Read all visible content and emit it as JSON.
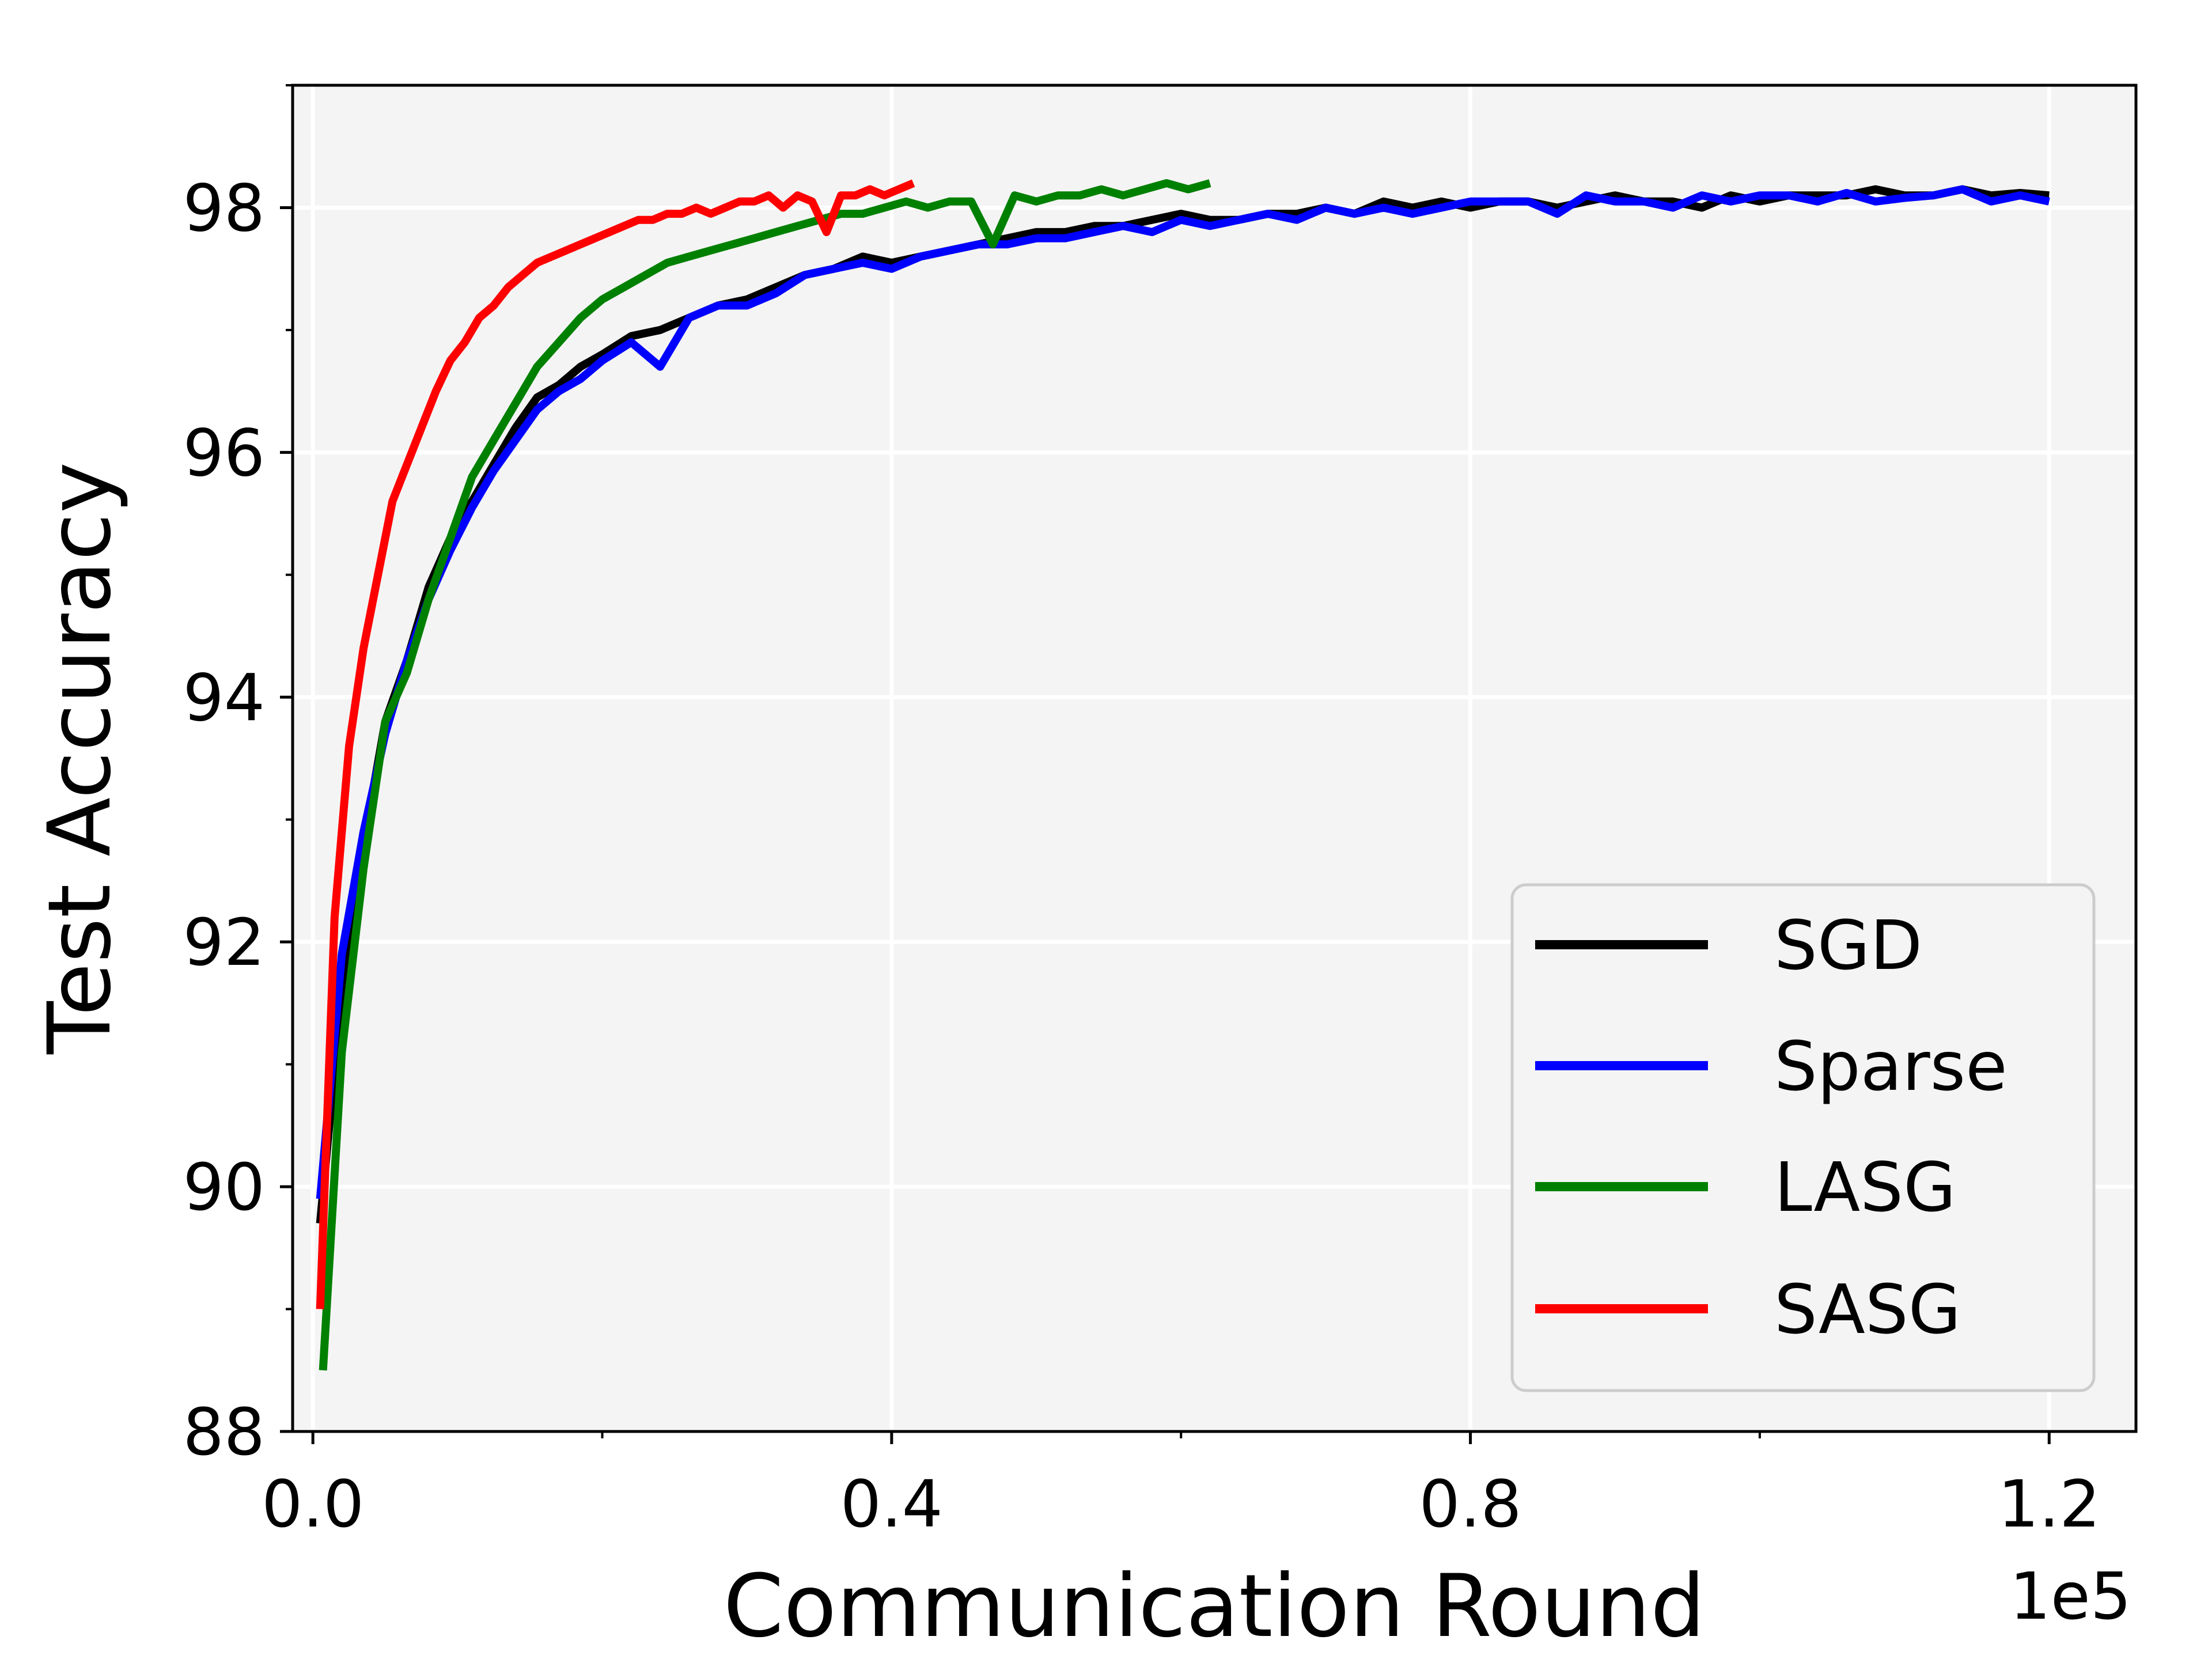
{
  "chart_data": {
    "type": "line",
    "title": "",
    "xlabel": "Communication Round",
    "ylabel": "Test Accuracy",
    "x_offset_text": "1e5",
    "xlim": [
      -0.014,
      1.26
    ],
    "ylim": [
      88,
      99
    ],
    "xticks": [
      0.0,
      0.4,
      0.8,
      1.2
    ],
    "xtick_labels": [
      "0.0",
      "0.4",
      "0.8",
      "1.2"
    ],
    "yticks": [
      88,
      90,
      92,
      94,
      96,
      98
    ],
    "ytick_labels": [
      "88",
      "90",
      "92",
      "94",
      "96",
      "98"
    ],
    "x_minor_ticks": [
      0.2,
      0.6,
      1.0
    ],
    "y_minor_ticks": [
      89,
      91,
      93,
      95,
      97,
      99
    ],
    "grid": true,
    "legend_position": "lower-right",
    "background": "#f4f4f4",
    "series": [
      {
        "name": "SGD",
        "color": "#000000",
        "x": [
          0.005,
          0.02,
          0.035,
          0.05,
          0.065,
          0.08,
          0.095,
          0.11,
          0.125,
          0.14,
          0.155,
          0.17,
          0.185,
          0.2,
          0.22,
          0.24,
          0.26,
          0.28,
          0.3,
          0.32,
          0.34,
          0.36,
          0.38,
          0.4,
          0.42,
          0.44,
          0.46,
          0.48,
          0.5,
          0.52,
          0.54,
          0.56,
          0.58,
          0.6,
          0.62,
          0.64,
          0.66,
          0.68,
          0.7,
          0.72,
          0.74,
          0.76,
          0.78,
          0.8,
          0.82,
          0.84,
          0.86,
          0.88,
          0.9,
          0.92,
          0.94,
          0.96,
          0.98,
          1.0,
          1.02,
          1.04,
          1.06,
          1.08,
          1.1,
          1.12,
          1.14,
          1.16,
          1.18,
          1.2
        ],
        "values": [
          89.7,
          91.6,
          92.8,
          93.8,
          94.3,
          94.9,
          95.3,
          95.6,
          95.9,
          96.2,
          96.45,
          96.55,
          96.7,
          96.8,
          96.95,
          97.0,
          97.1,
          97.2,
          97.25,
          97.35,
          97.45,
          97.5,
          97.6,
          97.55,
          97.6,
          97.65,
          97.7,
          97.75,
          97.8,
          97.8,
          97.85,
          97.85,
          97.9,
          97.95,
          97.9,
          97.9,
          97.95,
          97.95,
          98.0,
          97.95,
          98.05,
          98.0,
          98.05,
          98.0,
          98.05,
          98.05,
          98.0,
          98.05,
          98.1,
          98.05,
          98.05,
          98.0,
          98.1,
          98.05,
          98.1,
          98.1,
          98.1,
          98.15,
          98.1,
          98.1,
          98.15,
          98.1,
          98.12,
          98.1
        ]
      },
      {
        "name": "Sparse",
        "color": "#0000ff",
        "x": [
          0.005,
          0.02,
          0.035,
          0.05,
          0.065,
          0.08,
          0.095,
          0.11,
          0.125,
          0.14,
          0.155,
          0.17,
          0.185,
          0.2,
          0.22,
          0.24,
          0.26,
          0.28,
          0.3,
          0.32,
          0.34,
          0.36,
          0.38,
          0.4,
          0.42,
          0.44,
          0.46,
          0.48,
          0.5,
          0.52,
          0.54,
          0.56,
          0.58,
          0.6,
          0.62,
          0.64,
          0.66,
          0.68,
          0.7,
          0.72,
          0.74,
          0.76,
          0.78,
          0.8,
          0.82,
          0.84,
          0.86,
          0.88,
          0.9,
          0.92,
          0.94,
          0.96,
          0.98,
          1.0,
          1.02,
          1.04,
          1.06,
          1.08,
          1.1,
          1.12,
          1.14,
          1.16,
          1.18,
          1.2
        ],
        "values": [
          89.9,
          91.9,
          92.9,
          93.7,
          94.3,
          94.8,
          95.2,
          95.55,
          95.85,
          96.1,
          96.35,
          96.5,
          96.6,
          96.75,
          96.9,
          96.7,
          97.1,
          97.2,
          97.2,
          97.3,
          97.45,
          97.5,
          97.55,
          97.5,
          97.6,
          97.65,
          97.7,
          97.7,
          97.75,
          97.75,
          97.8,
          97.85,
          97.8,
          97.9,
          97.85,
          97.9,
          97.95,
          97.9,
          98.0,
          97.95,
          98.0,
          97.95,
          98.0,
          98.05,
          98.05,
          98.05,
          97.95,
          98.1,
          98.05,
          98.05,
          98.0,
          98.1,
          98.05,
          98.1,
          98.1,
          98.05,
          98.12,
          98.05,
          98.08,
          98.1,
          98.15,
          98.05,
          98.1,
          98.05
        ]
      },
      {
        "name": "LASG",
        "color": "#008000",
        "x": [
          0.007,
          0.02,
          0.035,
          0.05,
          0.065,
          0.08,
          0.095,
          0.11,
          0.125,
          0.14,
          0.155,
          0.17,
          0.185,
          0.2,
          0.215,
          0.23,
          0.245,
          0.26,
          0.275,
          0.29,
          0.305,
          0.32,
          0.335,
          0.35,
          0.365,
          0.38,
          0.395,
          0.41,
          0.425,
          0.44,
          0.455,
          0.47,
          0.485,
          0.5,
          0.515,
          0.53,
          0.545,
          0.56,
          0.575,
          0.59,
          0.605,
          0.62
        ],
        "values": [
          88.5,
          91.1,
          92.6,
          93.8,
          94.2,
          94.8,
          95.3,
          95.8,
          96.1,
          96.4,
          96.7,
          96.9,
          97.1,
          97.25,
          97.35,
          97.45,
          97.55,
          97.6,
          97.65,
          97.7,
          97.75,
          97.8,
          97.85,
          97.9,
          97.95,
          97.95,
          98.0,
          98.05,
          98.0,
          98.05,
          98.05,
          97.7,
          98.1,
          98.05,
          98.1,
          98.1,
          98.15,
          98.1,
          98.15,
          98.2,
          98.15,
          98.2
        ]
      },
      {
        "name": "SASG",
        "color": "#ff0000",
        "x": [
          0.005,
          0.015,
          0.025,
          0.035,
          0.045,
          0.055,
          0.065,
          0.075,
          0.085,
          0.095,
          0.105,
          0.115,
          0.125,
          0.135,
          0.145,
          0.155,
          0.165,
          0.175,
          0.185,
          0.195,
          0.205,
          0.215,
          0.225,
          0.235,
          0.245,
          0.255,
          0.265,
          0.275,
          0.285,
          0.295,
          0.305,
          0.315,
          0.325,
          0.335,
          0.345,
          0.355,
          0.365,
          0.375,
          0.385,
          0.395,
          0.405,
          0.415
        ],
        "values": [
          89.0,
          92.2,
          93.6,
          94.4,
          95.0,
          95.6,
          95.9,
          96.2,
          96.5,
          96.75,
          96.9,
          97.1,
          97.2,
          97.35,
          97.45,
          97.55,
          97.6,
          97.65,
          97.7,
          97.75,
          97.8,
          97.85,
          97.9,
          97.9,
          97.95,
          97.95,
          98.0,
          97.95,
          98.0,
          98.05,
          98.05,
          98.1,
          98.0,
          98.1,
          98.05,
          97.8,
          98.1,
          98.1,
          98.15,
          98.1,
          98.15,
          98.2
        ]
      }
    ]
  }
}
